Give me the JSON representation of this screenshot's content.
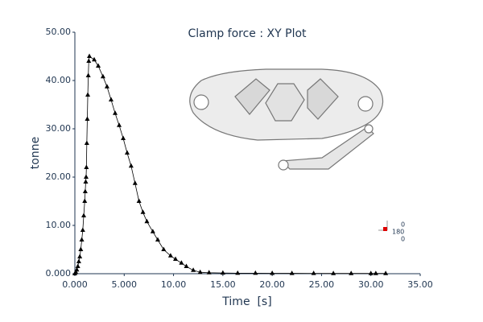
{
  "chart_data": {
    "type": "line",
    "title": "Clamp force : XY Plot",
    "xlabel": "Time  [s]",
    "ylabel": "tonne",
    "xlim": [
      0,
      35
    ],
    "ylim": [
      0,
      50
    ],
    "xticks": [
      {
        "value": 0,
        "label": "0.000"
      },
      {
        "value": 5,
        "label": "5.000"
      },
      {
        "value": 10,
        "label": "10.00"
      },
      {
        "value": 15,
        "label": "15.00"
      },
      {
        "value": 20,
        "label": "20.00"
      },
      {
        "value": 25,
        "label": "25.00"
      },
      {
        "value": 30,
        "label": "30.00"
      },
      {
        "value": 35,
        "label": "35.00"
      }
    ],
    "yticks": [
      {
        "value": 0,
        "label": "0.000"
      },
      {
        "value": 10,
        "label": "10.00"
      },
      {
        "value": 20,
        "label": "20.00"
      },
      {
        "value": 30,
        "label": "30.00"
      },
      {
        "value": 40,
        "label": "40.00"
      },
      {
        "value": 50,
        "label": "50.00"
      }
    ],
    "color": "#000000",
    "x": [
      0,
      0.1,
      0.2,
      0.3,
      0.4,
      0.5,
      0.6,
      0.7,
      0.8,
      0.9,
      1.0,
      1.05,
      1.1,
      1.14,
      1.17,
      1.21,
      1.26,
      1.31,
      1.36,
      1.41,
      1.47,
      1.96,
      2.37,
      2.85,
      3.26,
      3.67,
      4.08,
      4.49,
      4.9,
      5.3,
      5.7,
      6.1,
      6.5,
      6.9,
      7.3,
      7.9,
      8.4,
      9.0,
      9.7,
      10.2,
      10.8,
      11.3,
      12.0,
      12.7,
      13.6,
      15.0,
      16.5,
      18.3,
      20.0,
      22.0,
      24.2,
      26.2,
      28.0,
      30.0,
      30.5,
      31.5
    ],
    "values": [
      0,
      0.3,
      0.8,
      1.5,
      2.5,
      3.5,
      5,
      7,
      9,
      12,
      15,
      17,
      19,
      20,
      22,
      27,
      32,
      37,
      41,
      44,
      45,
      44.3,
      43,
      40.8,
      38.7,
      36,
      33.2,
      30.7,
      28,
      25,
      22.3,
      18.7,
      15,
      12.7,
      10.8,
      8.7,
      7,
      5,
      3.7,
      3,
      2.2,
      1.5,
      0.7,
      0.3,
      0.2,
      0.15,
      0.1,
      0.1,
      0.08,
      0.07,
      0.06,
      0.05,
      0.05,
      0.05,
      0.05,
      0.05
    ],
    "triad_labels": [
      "0",
      "180",
      "0"
    ]
  }
}
